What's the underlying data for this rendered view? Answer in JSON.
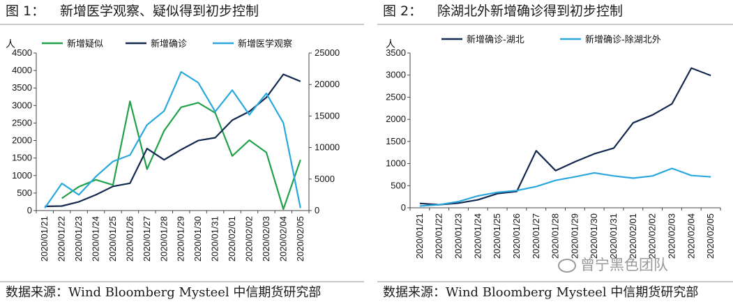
{
  "fig1": {
    "label": "图 1：",
    "title": "新增医学观察、疑似得到初步控制",
    "source": "数据来源：Wind Bloomberg Mysteel 中信期货研究部",
    "y_unit": "人"
  },
  "fig2": {
    "label": "图 2：",
    "title": "除湖北外新增确诊得到初步控制",
    "source": "数据来源：Wind Bloomberg Mysteel 中信期货研究部",
    "y_unit": "人"
  },
  "watermark": {
    "text": "曾宁黑色团队"
  },
  "chart_data": [
    {
      "type": "line",
      "title": "新增医学观察、疑似得到初步控制",
      "ylabel": "人",
      "x": [
        "2020/01/21",
        "2020/01/22",
        "2020/01/23",
        "2020/01/24",
        "2020/01/25",
        "2020/01/26",
        "2020/01/27",
        "2020/01/28",
        "2020/01/29",
        "2020/01/30",
        "2020/01/31",
        "2020/02/01",
        "2020/02/02",
        "2020/02/03",
        "2020/02/04",
        "2020/02/05"
      ],
      "ylim": [
        0,
        4500
      ],
      "yticks": [
        0,
        500,
        1000,
        1500,
        2000,
        2500,
        3000,
        3500,
        4000,
        4500
      ],
      "y2lim": [
        0,
        25000
      ],
      "y2ticks": [
        0,
        5000,
        10000,
        15000,
        20000,
        25000
      ],
      "legend_position": "top",
      "grid": false,
      "series": [
        {
          "name": "新增疑似",
          "axis": "left",
          "color": "#22a04a",
          "values": [
            null,
            350,
            680,
            880,
            730,
            3120,
            1180,
            2280,
            2950,
            3080,
            2790,
            1560,
            2010,
            1660,
            40,
            1450
          ]
        },
        {
          "name": "新增确诊",
          "axis": "left",
          "color": "#13284f",
          "values": [
            120,
            130,
            250,
            450,
            690,
            780,
            1770,
            1450,
            1740,
            2000,
            2080,
            2580,
            2830,
            3230,
            3890,
            3690
          ]
        },
        {
          "name": "新增医学观察",
          "axis": "right",
          "color": "#2aa8de",
          "values": [
            400,
            4300,
            2500,
            5400,
            7800,
            8800,
            13600,
            15800,
            22000,
            20300,
            15700,
            19100,
            15200,
            18600,
            13900,
            400
          ]
        }
      ]
    },
    {
      "type": "line",
      "title": "除湖北外新增确诊得到初步控制",
      "ylabel": "人",
      "x": [
        "2020/01/21",
        "2020/01/22",
        "2020/01/23",
        "2020/01/24",
        "2020/01/25",
        "2020/01/26",
        "2020/01/27",
        "2020/01/28",
        "2020/01/29",
        "2020/01/30",
        "2020/01/31",
        "2020/02/01",
        "2020/02/02",
        "2020/02/03",
        "2020/02/04",
        "2020/02/05"
      ],
      "ylim": [
        0,
        3500
      ],
      "yticks": [
        0,
        500,
        1000,
        1500,
        2000,
        2500,
        3000,
        3500
      ],
      "legend_position": "top",
      "grid": false,
      "series": [
        {
          "name": "新增确诊-湖北",
          "color": "#13284f",
          "values": [
            100,
            70,
            105,
            180,
            320,
            370,
            1290,
            840,
            1040,
            1220,
            1350,
            1920,
            2100,
            2350,
            3160,
            2990
          ]
        },
        {
          "name": "新增确诊-除湖北外",
          "color": "#2aa8de",
          "values": [
            40,
            70,
            140,
            270,
            350,
            390,
            480,
            620,
            700,
            790,
            720,
            670,
            720,
            890,
            730,
            700
          ]
        }
      ]
    }
  ]
}
